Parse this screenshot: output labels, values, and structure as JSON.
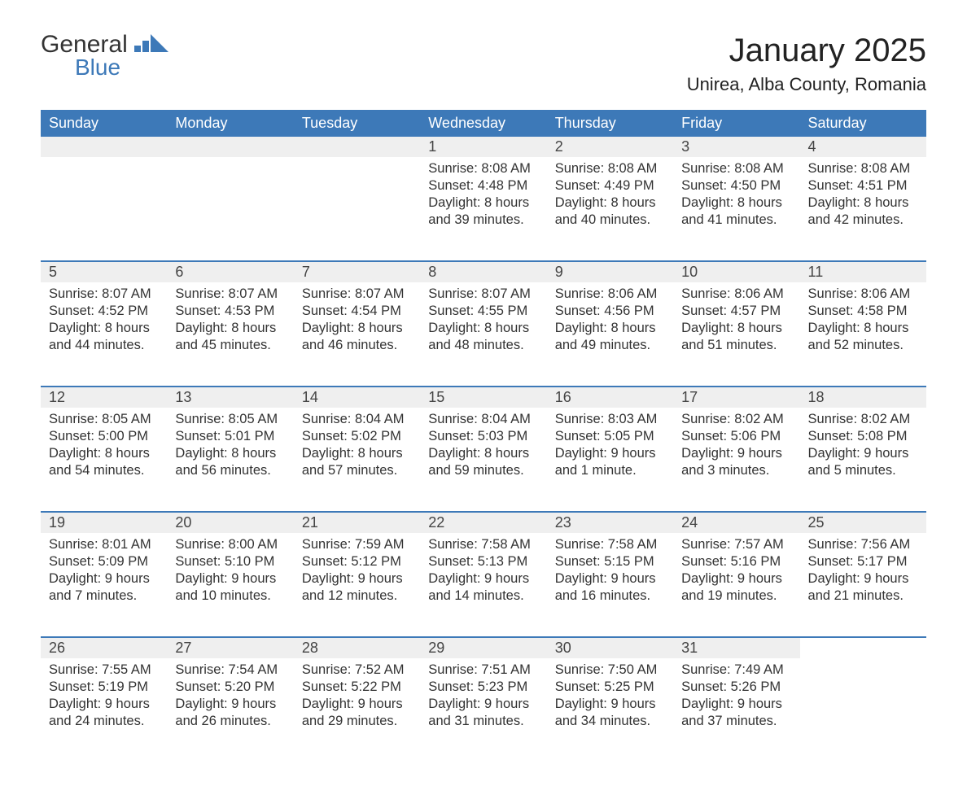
{
  "logo": {
    "word1": "General",
    "word2": "Blue",
    "arrow_color": "#3d79b8",
    "text_color_dark": "#333333"
  },
  "title": "January 2025",
  "location": "Unirea, Alba County, Romania",
  "theme": {
    "header_bg": "#3d79b8",
    "header_text": "#ffffff",
    "daynum_bg": "#efefef",
    "border_top": "#3d79b8",
    "body_text": "#333333",
    "page_bg": "#ffffff",
    "title_fontsize": 40,
    "location_fontsize": 22,
    "dayheader_fontsize": 18,
    "cell_fontsize": 16.5
  },
  "day_headers": [
    "Sunday",
    "Monday",
    "Tuesday",
    "Wednesday",
    "Thursday",
    "Friday",
    "Saturday"
  ],
  "weeks": [
    [
      null,
      null,
      null,
      {
        "n": "1",
        "sunrise": "Sunrise: 8:08 AM",
        "sunset": "Sunset: 4:48 PM",
        "dl1": "Daylight: 8 hours",
        "dl2": "and 39 minutes."
      },
      {
        "n": "2",
        "sunrise": "Sunrise: 8:08 AM",
        "sunset": "Sunset: 4:49 PM",
        "dl1": "Daylight: 8 hours",
        "dl2": "and 40 minutes."
      },
      {
        "n": "3",
        "sunrise": "Sunrise: 8:08 AM",
        "sunset": "Sunset: 4:50 PM",
        "dl1": "Daylight: 8 hours",
        "dl2": "and 41 minutes."
      },
      {
        "n": "4",
        "sunrise": "Sunrise: 8:08 AM",
        "sunset": "Sunset: 4:51 PM",
        "dl1": "Daylight: 8 hours",
        "dl2": "and 42 minutes."
      }
    ],
    [
      {
        "n": "5",
        "sunrise": "Sunrise: 8:07 AM",
        "sunset": "Sunset: 4:52 PM",
        "dl1": "Daylight: 8 hours",
        "dl2": "and 44 minutes."
      },
      {
        "n": "6",
        "sunrise": "Sunrise: 8:07 AM",
        "sunset": "Sunset: 4:53 PM",
        "dl1": "Daylight: 8 hours",
        "dl2": "and 45 minutes."
      },
      {
        "n": "7",
        "sunrise": "Sunrise: 8:07 AM",
        "sunset": "Sunset: 4:54 PM",
        "dl1": "Daylight: 8 hours",
        "dl2": "and 46 minutes."
      },
      {
        "n": "8",
        "sunrise": "Sunrise: 8:07 AM",
        "sunset": "Sunset: 4:55 PM",
        "dl1": "Daylight: 8 hours",
        "dl2": "and 48 minutes."
      },
      {
        "n": "9",
        "sunrise": "Sunrise: 8:06 AM",
        "sunset": "Sunset: 4:56 PM",
        "dl1": "Daylight: 8 hours",
        "dl2": "and 49 minutes."
      },
      {
        "n": "10",
        "sunrise": "Sunrise: 8:06 AM",
        "sunset": "Sunset: 4:57 PM",
        "dl1": "Daylight: 8 hours",
        "dl2": "and 51 minutes."
      },
      {
        "n": "11",
        "sunrise": "Sunrise: 8:06 AM",
        "sunset": "Sunset: 4:58 PM",
        "dl1": "Daylight: 8 hours",
        "dl2": "and 52 minutes."
      }
    ],
    [
      {
        "n": "12",
        "sunrise": "Sunrise: 8:05 AM",
        "sunset": "Sunset: 5:00 PM",
        "dl1": "Daylight: 8 hours",
        "dl2": "and 54 minutes."
      },
      {
        "n": "13",
        "sunrise": "Sunrise: 8:05 AM",
        "sunset": "Sunset: 5:01 PM",
        "dl1": "Daylight: 8 hours",
        "dl2": "and 56 minutes."
      },
      {
        "n": "14",
        "sunrise": "Sunrise: 8:04 AM",
        "sunset": "Sunset: 5:02 PM",
        "dl1": "Daylight: 8 hours",
        "dl2": "and 57 minutes."
      },
      {
        "n": "15",
        "sunrise": "Sunrise: 8:04 AM",
        "sunset": "Sunset: 5:03 PM",
        "dl1": "Daylight: 8 hours",
        "dl2": "and 59 minutes."
      },
      {
        "n": "16",
        "sunrise": "Sunrise: 8:03 AM",
        "sunset": "Sunset: 5:05 PM",
        "dl1": "Daylight: 9 hours",
        "dl2": "and 1 minute."
      },
      {
        "n": "17",
        "sunrise": "Sunrise: 8:02 AM",
        "sunset": "Sunset: 5:06 PM",
        "dl1": "Daylight: 9 hours",
        "dl2": "and 3 minutes."
      },
      {
        "n": "18",
        "sunrise": "Sunrise: 8:02 AM",
        "sunset": "Sunset: 5:08 PM",
        "dl1": "Daylight: 9 hours",
        "dl2": "and 5 minutes."
      }
    ],
    [
      {
        "n": "19",
        "sunrise": "Sunrise: 8:01 AM",
        "sunset": "Sunset: 5:09 PM",
        "dl1": "Daylight: 9 hours",
        "dl2": "and 7 minutes."
      },
      {
        "n": "20",
        "sunrise": "Sunrise: 8:00 AM",
        "sunset": "Sunset: 5:10 PM",
        "dl1": "Daylight: 9 hours",
        "dl2": "and 10 minutes."
      },
      {
        "n": "21",
        "sunrise": "Sunrise: 7:59 AM",
        "sunset": "Sunset: 5:12 PM",
        "dl1": "Daylight: 9 hours",
        "dl2": "and 12 minutes."
      },
      {
        "n": "22",
        "sunrise": "Sunrise: 7:58 AM",
        "sunset": "Sunset: 5:13 PM",
        "dl1": "Daylight: 9 hours",
        "dl2": "and 14 minutes."
      },
      {
        "n": "23",
        "sunrise": "Sunrise: 7:58 AM",
        "sunset": "Sunset: 5:15 PM",
        "dl1": "Daylight: 9 hours",
        "dl2": "and 16 minutes."
      },
      {
        "n": "24",
        "sunrise": "Sunrise: 7:57 AM",
        "sunset": "Sunset: 5:16 PM",
        "dl1": "Daylight: 9 hours",
        "dl2": "and 19 minutes."
      },
      {
        "n": "25",
        "sunrise": "Sunrise: 7:56 AM",
        "sunset": "Sunset: 5:17 PM",
        "dl1": "Daylight: 9 hours",
        "dl2": "and 21 minutes."
      }
    ],
    [
      {
        "n": "26",
        "sunrise": "Sunrise: 7:55 AM",
        "sunset": "Sunset: 5:19 PM",
        "dl1": "Daylight: 9 hours",
        "dl2": "and 24 minutes."
      },
      {
        "n": "27",
        "sunrise": "Sunrise: 7:54 AM",
        "sunset": "Sunset: 5:20 PM",
        "dl1": "Daylight: 9 hours",
        "dl2": "and 26 minutes."
      },
      {
        "n": "28",
        "sunrise": "Sunrise: 7:52 AM",
        "sunset": "Sunset: 5:22 PM",
        "dl1": "Daylight: 9 hours",
        "dl2": "and 29 minutes."
      },
      {
        "n": "29",
        "sunrise": "Sunrise: 7:51 AM",
        "sunset": "Sunset: 5:23 PM",
        "dl1": "Daylight: 9 hours",
        "dl2": "and 31 minutes."
      },
      {
        "n": "30",
        "sunrise": "Sunrise: 7:50 AM",
        "sunset": "Sunset: 5:25 PM",
        "dl1": "Daylight: 9 hours",
        "dl2": "and 34 minutes."
      },
      {
        "n": "31",
        "sunrise": "Sunrise: 7:49 AM",
        "sunset": "Sunset: 5:26 PM",
        "dl1": "Daylight: 9 hours",
        "dl2": "and 37 minutes."
      },
      null
    ]
  ]
}
